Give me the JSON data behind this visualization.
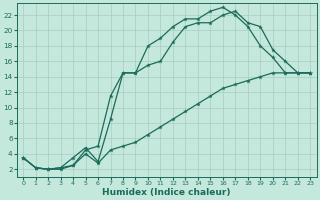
{
  "bg_color": "#c5e8dc",
  "grid_color": "#a8ccbe",
  "line_color": "#1a6b5a",
  "xlim": [
    -0.5,
    23.5
  ],
  "ylim": [
    1,
    23.5
  ],
  "xticks": [
    0,
    1,
    2,
    3,
    4,
    5,
    6,
    7,
    8,
    9,
    10,
    11,
    12,
    13,
    14,
    15,
    16,
    17,
    18,
    19,
    20,
    21,
    22,
    23
  ],
  "yticks": [
    2,
    4,
    6,
    8,
    10,
    12,
    14,
    16,
    18,
    20,
    22
  ],
  "xlabel": "Humidex (Indice chaleur)",
  "line1_x": [
    0,
    1,
    2,
    3,
    4,
    5,
    6,
    7,
    8,
    9,
    10,
    11,
    12,
    13,
    14,
    15,
    16,
    17,
    18,
    19,
    20,
    21,
    22,
    23
  ],
  "line1_y": [
    3.5,
    2.2,
    2.0,
    2.2,
    2.5,
    4.5,
    5.0,
    11.5,
    14.5,
    14.5,
    18.0,
    19.0,
    20.5,
    21.5,
    21.5,
    22.5,
    23.0,
    22.0,
    20.5,
    18.0,
    16.5,
    14.5,
    14.5,
    14.5
  ],
  "line2_x": [
    0,
    1,
    2,
    3,
    4,
    5,
    6,
    7,
    8,
    9,
    10,
    11,
    12,
    13,
    14,
    15,
    16,
    17,
    18,
    19,
    20,
    21,
    22,
    23
  ],
  "line2_y": [
    3.5,
    2.2,
    2.0,
    2.2,
    3.5,
    4.8,
    3.0,
    8.5,
    14.5,
    14.5,
    15.5,
    16.0,
    18.5,
    20.5,
    21.0,
    21.0,
    22.0,
    22.5,
    21.0,
    20.5,
    17.5,
    16.0,
    14.5,
    14.5
  ],
  "line3_x": [
    0,
    1,
    2,
    3,
    4,
    5,
    6,
    7,
    8,
    9,
    10,
    11,
    12,
    13,
    14,
    15,
    16,
    17,
    18,
    19,
    20,
    21,
    22,
    23
  ],
  "line3_y": [
    3.5,
    2.2,
    2.0,
    2.0,
    2.5,
    4.0,
    2.8,
    4.5,
    5.0,
    5.5,
    6.5,
    7.5,
    8.5,
    9.5,
    10.5,
    11.5,
    12.5,
    13.0,
    13.5,
    14.0,
    14.5,
    14.5,
    14.5,
    14.5
  ]
}
